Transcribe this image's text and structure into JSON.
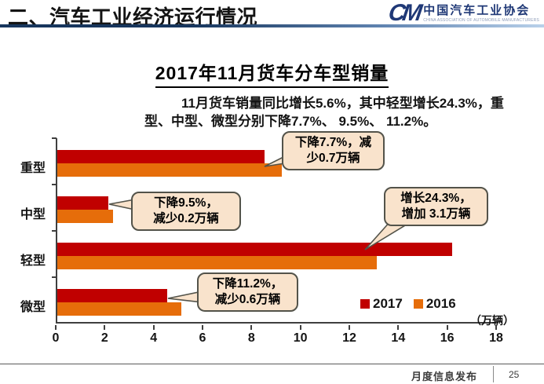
{
  "header": {
    "title": "二、汽车工业经济运行情况",
    "logo": {
      "monogram": "CM",
      "org_cn": "中国汽车工业协会",
      "org_en": "CHINA ASSOCIATION OF AUTOMOBILE MANUFACTURERS"
    }
  },
  "slide": {
    "title": "2017年11月货车分车型销量",
    "subtitle_lines": [
      "11月货车销量同比增长5.6%，其中轻型增长24.3%，重",
      "型、中型、微型分别下降7.7%、 9.5%、 11.2%。"
    ]
  },
  "chart_data": {
    "type": "bar",
    "orientation": "horizontal",
    "title": "2017年11月货车分车型销量",
    "categories": [
      "重型",
      "中型",
      "轻型",
      "微型"
    ],
    "series": [
      {
        "name": "2017",
        "color": "#C00000",
        "values": [
          8.5,
          2.1,
          16.2,
          4.5
        ]
      },
      {
        "name": "2016",
        "color": "#E66D0A",
        "values": [
          9.2,
          2.3,
          13.1,
          5.1
        ]
      }
    ],
    "xlim": [
      0,
      18
    ],
    "xticks": [
      0,
      2,
      4,
      6,
      8,
      10,
      12,
      14,
      16,
      18
    ],
    "unit_label": "（万辆）",
    "legend_position": "bottom-right",
    "grid": false,
    "annotations": [
      {
        "category": "重型",
        "lines": [
          "下降7.7%，减",
          "少0.7万辆"
        ]
      },
      {
        "category": "中型",
        "lines": [
          "下降9.5%，",
          "减少0.2万辆"
        ]
      },
      {
        "category": "轻型",
        "lines": [
          "增长24.3%，",
          "增加 3.1万辆"
        ]
      },
      {
        "category": "微型",
        "lines": [
          "下降11.2%，",
          "减少0.6万辆"
        ]
      }
    ]
  },
  "footer": {
    "label": "月度信息发布",
    "page_number": "25"
  },
  "colors": {
    "series_2017": "#C00000",
    "series_2016": "#E66D0A",
    "callout_fill": "#F9E3CC",
    "callout_border": "#53534A",
    "header_rule_start": "#17365D",
    "header_rule_end": "#B9D1EA",
    "logo_navy": "#1F3876"
  }
}
